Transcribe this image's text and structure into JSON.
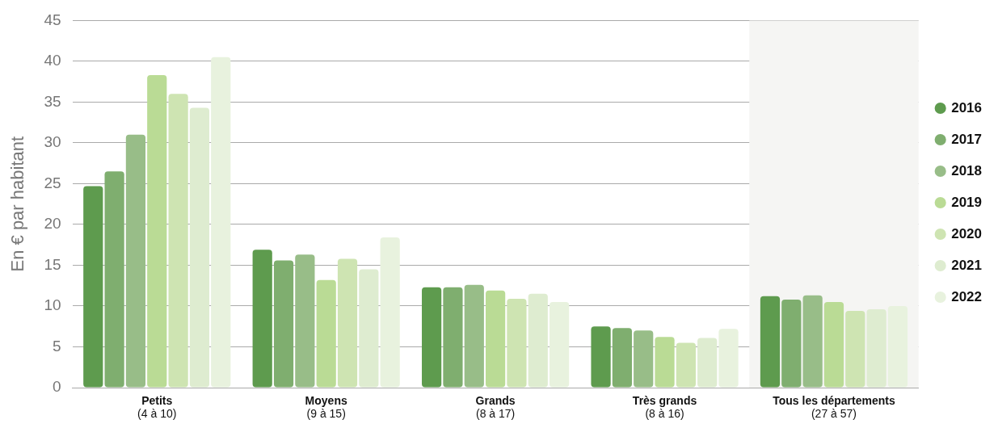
{
  "chart_data": {
    "type": "bar",
    "ylabel": "En € par habitant",
    "categories": [
      "Petits\n(4 à 10)",
      "Moyens\n(9 à 15)",
      "Grands\n(8 à 17)",
      "Très grands\n(8 à 16)",
      "Tous les départements\n(27 à 57)"
    ],
    "series": [
      {
        "name": "2016",
        "color": "#5e9b4e",
        "values": [
          24.7,
          16.9,
          12.3,
          7.5,
          11.2
        ]
      },
      {
        "name": "2017",
        "color": "#7fae6f",
        "values": [
          26.5,
          15.6,
          12.3,
          7.3,
          10.8
        ]
      },
      {
        "name": "2018",
        "color": "#98bd88",
        "values": [
          31.0,
          16.3,
          12.6,
          7.0,
          11.3
        ]
      },
      {
        "name": "2019",
        "color": "#badb95",
        "values": [
          38.3,
          13.2,
          11.9,
          6.2,
          10.5
        ]
      },
      {
        "name": "2020",
        "color": "#cee4b2",
        "values": [
          36.0,
          15.8,
          10.9,
          5.5,
          9.4
        ]
      },
      {
        "name": "2021",
        "color": "#deecd0",
        "values": [
          34.3,
          14.5,
          11.5,
          6.1,
          9.6
        ]
      },
      {
        "name": "2022",
        "color": "#e8f2de",
        "values": [
          40.5,
          18.4,
          10.5,
          7.2,
          10.0
        ]
      }
    ],
    "ylim": [
      0,
      45
    ],
    "yticks": [
      0,
      5,
      10,
      15,
      20,
      25,
      30,
      35,
      40,
      45
    ],
    "grid": "y",
    "legend": "right",
    "bands": [
      {
        "axis": "x",
        "from": "Tous les départements\n(27 à 57)",
        "to": "Tous les départements\n(27 à 57)",
        "color": "#f5f5f3"
      }
    ]
  }
}
